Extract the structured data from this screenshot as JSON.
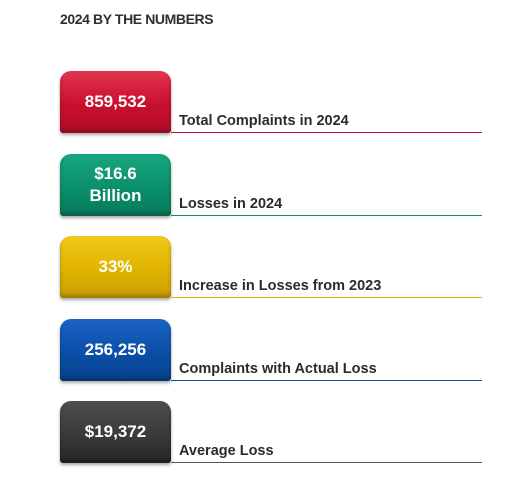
{
  "heading": "2024 BY THE NUMBERS",
  "stats": [
    {
      "value": "859,532",
      "label": "Total Complaints in 2024",
      "color": "#c8102e",
      "gradient_top": "#e3344f",
      "gradient_bottom": "#b00d28",
      "rule_color": "#c8102e"
    },
    {
      "value": "$16.6\nBillion",
      "label": "Losses in 2024",
      "color": "#0a8f6b",
      "gradient_top": "#16a77f",
      "gradient_bottom": "#077a5a",
      "rule_color": "#0a8f6b"
    },
    {
      "value": "33%",
      "label": "Increase in Losses from 2023",
      "color": "#e0b400",
      "gradient_top": "#f2c91a",
      "gradient_bottom": "#c99f00",
      "rule_color": "#e0b400"
    },
    {
      "value": "256,256",
      "label": "Complaints with Actual Loss",
      "color": "#0b4fa8",
      "gradient_top": "#1a63c4",
      "gradient_bottom": "#08418c",
      "rule_color": "#0b4fa8"
    },
    {
      "value": "$19,372",
      "label": "Average Loss",
      "color": "#3a3a3a",
      "gradient_top": "#4d4d4d",
      "gradient_bottom": "#262626",
      "rule_color": "#555555"
    }
  ]
}
